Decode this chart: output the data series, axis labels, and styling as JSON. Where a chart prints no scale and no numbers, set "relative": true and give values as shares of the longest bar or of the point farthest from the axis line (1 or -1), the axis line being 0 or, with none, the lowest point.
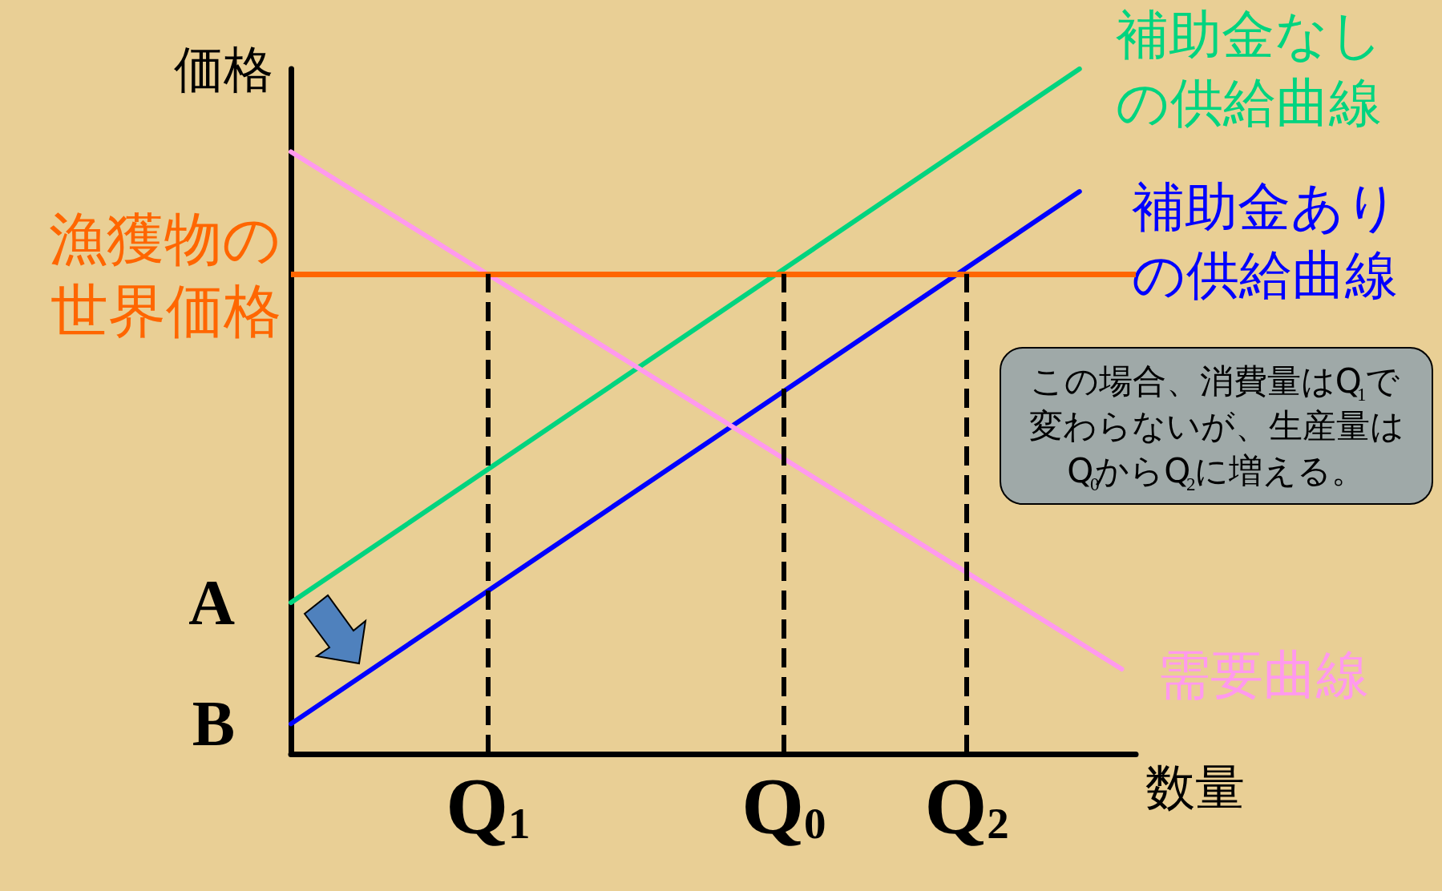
{
  "chart_data": {
    "type": "line",
    "relative": true,
    "tick_labels": "x",
    "grid": false,
    "legend": false,
    "marker": "none",
    "line_style": "solid",
    "xlabel": "数量",
    "ylabel": "価格",
    "categories": [
      null,
      null,
      null,
      null,
      null,
      null,
      null,
      null,
      null,
      null,
      null,
      null,
      null,
      null,
      "Q$_{1}$",
      null,
      null,
      null,
      null,
      null,
      null,
      null,
      null,
      null,
      null,
      null,
      null,
      null,
      null,
      null,
      null,
      null,
      null,
      null,
      null,
      "Q$_{0}$",
      null,
      null,
      null,
      null,
      null,
      null,
      null,
      null,
      null,
      null,
      null,
      null,
      "Q$_{2}$",
      null,
      null,
      null,
      null,
      null,
      null,
      null,
      null,
      null,
      null,
      null,
      null
    ],
    "series": [
      {
        "name": "補助金なしの供給曲線",
        "color": "#00d47f",
        "values": [
          0.221,
          null,
          null,
          null,
          null,
          null,
          null,
          null,
          null,
          null,
          null,
          null,
          null,
          null,
          null,
          null,
          null,
          null,
          null,
          null,
          null,
          null,
          null,
          null,
          null,
          null,
          null,
          null,
          null,
          null,
          null,
          null,
          null,
          null,
          null,
          null,
          null,
          null,
          null,
          null,
          null,
          null,
          null,
          null,
          null,
          null,
          null,
          null,
          null,
          null,
          null,
          null,
          null,
          null,
          null,
          null,
          1,
          null,
          null,
          null,
          null
        ]
      },
      {
        "name": "補助金ありの供給曲線",
        "color": "#0000ff",
        "values": [
          0.044,
          null,
          null,
          null,
          null,
          null,
          null,
          null,
          null,
          null,
          null,
          null,
          null,
          null,
          null,
          null,
          null,
          null,
          null,
          null,
          null,
          null,
          null,
          null,
          null,
          null,
          null,
          null,
          null,
          null,
          null,
          null,
          null,
          null,
          null,
          null,
          null,
          null,
          null,
          null,
          null,
          null,
          null,
          null,
          null,
          null,
          null,
          null,
          null,
          null,
          null,
          null,
          null,
          null,
          null,
          null,
          0.821,
          null,
          null,
          null,
          null
        ]
      },
      {
        "name": "需要曲線",
        "color": "#ff99ee",
        "values": [
          0.879,
          null,
          null,
          null,
          null,
          null,
          null,
          null,
          null,
          null,
          null,
          null,
          null,
          null,
          null,
          null,
          null,
          null,
          null,
          null,
          null,
          null,
          null,
          null,
          null,
          null,
          null,
          null,
          null,
          null,
          null,
          null,
          null,
          null,
          null,
          null,
          null,
          null,
          null,
          null,
          null,
          null,
          null,
          null,
          null,
          null,
          null,
          null,
          null,
          null,
          null,
          null,
          null,
          null,
          null,
          null,
          null,
          null,
          null,
          0.124,
          null
        ]
      }
    ],
    "ref_lines": [
      {
        "axis": "y",
        "value": 0.701,
        "label": "漁獲物の世界価格",
        "color": "#ff6600"
      },
      {
        "axis": "x",
        "value": "Q$_{1}$",
        "color": "#000000",
        "line_style": "dashed"
      },
      {
        "axis": "x",
        "value": "Q$_{0}$",
        "color": "#000000",
        "line_style": "dashed"
      },
      {
        "axis": "x",
        "value": "Q$_{2}$",
        "color": "#000000",
        "line_style": "dashed"
      }
    ],
    "annotations": [
      "A",
      "B",
      "この場合、消費量はQ$_{1}$で変わらないが、生産量はQ$_{0}$からQ$_{2}$に増える。"
    ]
  }
}
